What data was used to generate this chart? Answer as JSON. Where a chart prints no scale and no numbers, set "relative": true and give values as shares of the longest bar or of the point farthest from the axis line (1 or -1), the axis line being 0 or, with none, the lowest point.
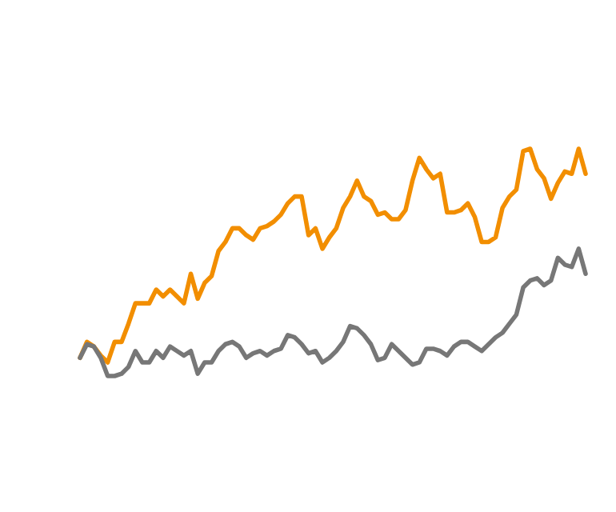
{
  "chart_data": {
    "type": "line",
    "relative": true,
    "categories": [
      null,
      null,
      null,
      null,
      null,
      null,
      null,
      null,
      null,
      null,
      null,
      null,
      null,
      null,
      null,
      null,
      null,
      null,
      null,
      null,
      null,
      null,
      null,
      null,
      null,
      null,
      null,
      null,
      null,
      null,
      null,
      null,
      null,
      null,
      null,
      null,
      null,
      null,
      null,
      null,
      null,
      null,
      null,
      null,
      null,
      null,
      null,
      null,
      null,
      null,
      null,
      null,
      null,
      null,
      null,
      null,
      null,
      null,
      null,
      null,
      null,
      null,
      null,
      null,
      null,
      null,
      null,
      null,
      null,
      null,
      null,
      null,
      null,
      null
    ],
    "series": [
      {
        "color": "#f28e00",
        "values": [
          0.08,
          0.15,
          0.13,
          0.09,
          0.06,
          0.15,
          0.15,
          0.23,
          0.32,
          0.32,
          0.32,
          0.38,
          0.35,
          0.38,
          0.35,
          0.32,
          0.45,
          0.34,
          0.41,
          0.44,
          0.55,
          0.59,
          0.65,
          0.65,
          0.62,
          0.6,
          0.65,
          0.66,
          0.68,
          0.71,
          0.76,
          0.79,
          0.79,
          0.62,
          0.65,
          0.56,
          0.61,
          0.65,
          0.74,
          0.79,
          0.86,
          0.79,
          0.77,
          0.71,
          0.72,
          0.69,
          0.69,
          0.73,
          0.86,
          0.96,
          0.91,
          0.87,
          0.89,
          0.72,
          0.72,
          0.73,
          0.76,
          0.7,
          0.59,
          0.59,
          0.61,
          0.74,
          0.79,
          0.82,
          0.99,
          1.0,
          0.91,
          0.87,
          0.78,
          0.85,
          0.9,
          0.89,
          1.0,
          0.89
        ]
      },
      {
        "color": "#777777",
        "values": [
          0.08,
          0.14,
          0.13,
          0.08,
          0,
          0,
          0.01,
          0.04,
          0.11,
          0.06,
          0.06,
          0.11,
          0.08,
          0.13,
          0.11,
          0.09,
          0.11,
          0.01,
          0.06,
          0.06,
          0.11,
          0.14,
          0.15,
          0.13,
          0.08,
          0.1,
          0.11,
          0.09,
          0.11,
          0.12,
          0.18,
          0.17,
          0.14,
          0.1,
          0.11,
          0.06,
          0.08,
          0.11,
          0.15,
          0.22,
          0.21,
          0.18,
          0.14,
          0.07,
          0.08,
          0.14,
          0.11,
          0.08,
          0.05,
          0.06,
          0.12,
          0.12,
          0.11,
          0.09,
          0.13,
          0.15,
          0.15,
          0.13,
          0.11,
          0.14,
          0.17,
          0.19,
          0.23,
          0.27,
          0.39,
          0.42,
          0.43,
          0.4,
          0.42,
          0.52,
          0.49,
          0.48,
          0.56,
          0.45
        ]
      }
    ]
  }
}
